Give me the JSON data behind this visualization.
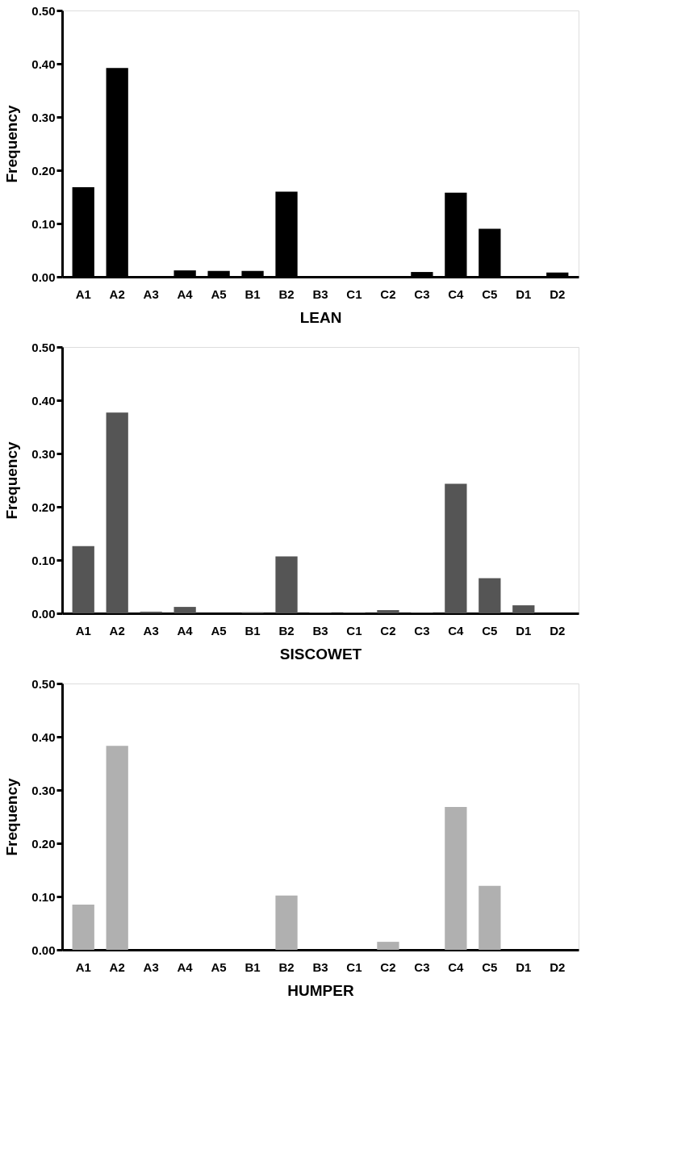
{
  "chart_data": [
    {
      "type": "bar",
      "xlabel": "LEAN",
      "ylabel": "Frequency",
      "categories": [
        "A1",
        "A2",
        "A3",
        "A4",
        "A5",
        "B1",
        "B2",
        "B3",
        "C1",
        "C2",
        "C3",
        "C4",
        "C5",
        "D1",
        "D2"
      ],
      "values": [
        0.168,
        0.392,
        0,
        0.012,
        0.011,
        0.011,
        0.16,
        0,
        0,
        0,
        0.009,
        0.158,
        0.09,
        0,
        0.008
      ],
      "color": "#000000",
      "ylim": [
        0,
        0.5
      ],
      "yticks": [
        {
          "value": 0,
          "label": "0.00"
        },
        {
          "value": 0.1,
          "label": "0.10"
        },
        {
          "value": 0.2,
          "label": "0.20"
        },
        {
          "value": 0.3,
          "label": "0.30"
        },
        {
          "value": 0.4,
          "label": "0.40"
        },
        {
          "value": 0.5,
          "label": "0.50"
        }
      ],
      "grid": false
    },
    {
      "type": "bar",
      "xlabel": "SISCOWET",
      "ylabel": "Frequency",
      "categories": [
        "A1",
        "A2",
        "A3",
        "A4",
        "A5",
        "B1",
        "B2",
        "B3",
        "C1",
        "C2",
        "C3",
        "C4",
        "C5",
        "D1",
        "D2"
      ],
      "values": [
        0.126,
        0.377,
        0.003,
        0.012,
        0,
        0.002,
        0.107,
        0.001,
        0.001,
        0.006,
        0.001,
        0.243,
        0.066,
        0.015,
        0
      ],
      "color": "#555555",
      "ylim": [
        0,
        0.5
      ],
      "yticks": [
        {
          "value": 0,
          "label": "0.00"
        },
        {
          "value": 0.1,
          "label": "0.10"
        },
        {
          "value": 0.2,
          "label": "0.20"
        },
        {
          "value": 0.3,
          "label": "0.30"
        },
        {
          "value": 0.4,
          "label": "0.40"
        },
        {
          "value": 0.5,
          "label": "0.50"
        }
      ],
      "grid": false
    },
    {
      "type": "bar",
      "xlabel": "HUMPER",
      "ylabel": "Frequency",
      "categories": [
        "A1",
        "A2",
        "A3",
        "A4",
        "A5",
        "B1",
        "B2",
        "B3",
        "C1",
        "C2",
        "C3",
        "C4",
        "C5",
        "D1",
        "D2"
      ],
      "values": [
        0.085,
        0.383,
        0,
        0,
        0,
        0,
        0.102,
        0,
        0,
        0.015,
        0,
        0.268,
        0.12,
        0,
        0
      ],
      "color": "#b0b0b0",
      "ylim": [
        0,
        0.5
      ],
      "yticks": [
        {
          "value": 0,
          "label": "0.00"
        },
        {
          "value": 0.1,
          "label": "0.10"
        },
        {
          "value": 0.2,
          "label": "0.20"
        },
        {
          "value": 0.3,
          "label": "0.30"
        },
        {
          "value": 0.4,
          "label": "0.40"
        },
        {
          "value": 0.5,
          "label": "0.50"
        }
      ],
      "grid": false
    }
  ]
}
